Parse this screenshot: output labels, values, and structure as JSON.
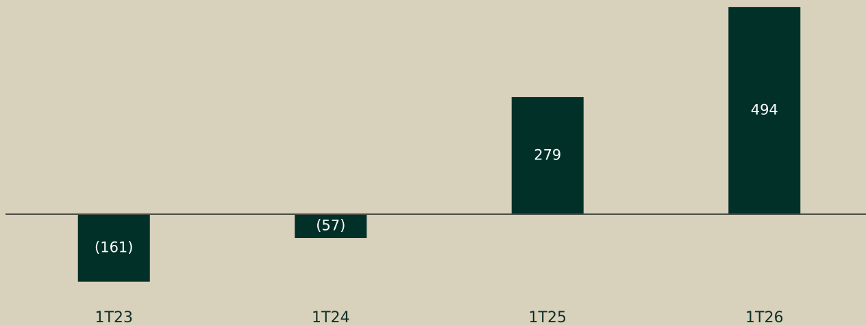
{
  "chart_data": {
    "type": "bar",
    "categories": [
      "1T23",
      "1T24",
      "1T25",
      "1T26"
    ],
    "values": [
      -161,
      -57,
      279,
      494
    ],
    "value_labels": [
      "(161)",
      "(57)",
      "279",
      "494"
    ],
    "color": "#003028",
    "ylim": [
      -200,
      500
    ]
  }
}
